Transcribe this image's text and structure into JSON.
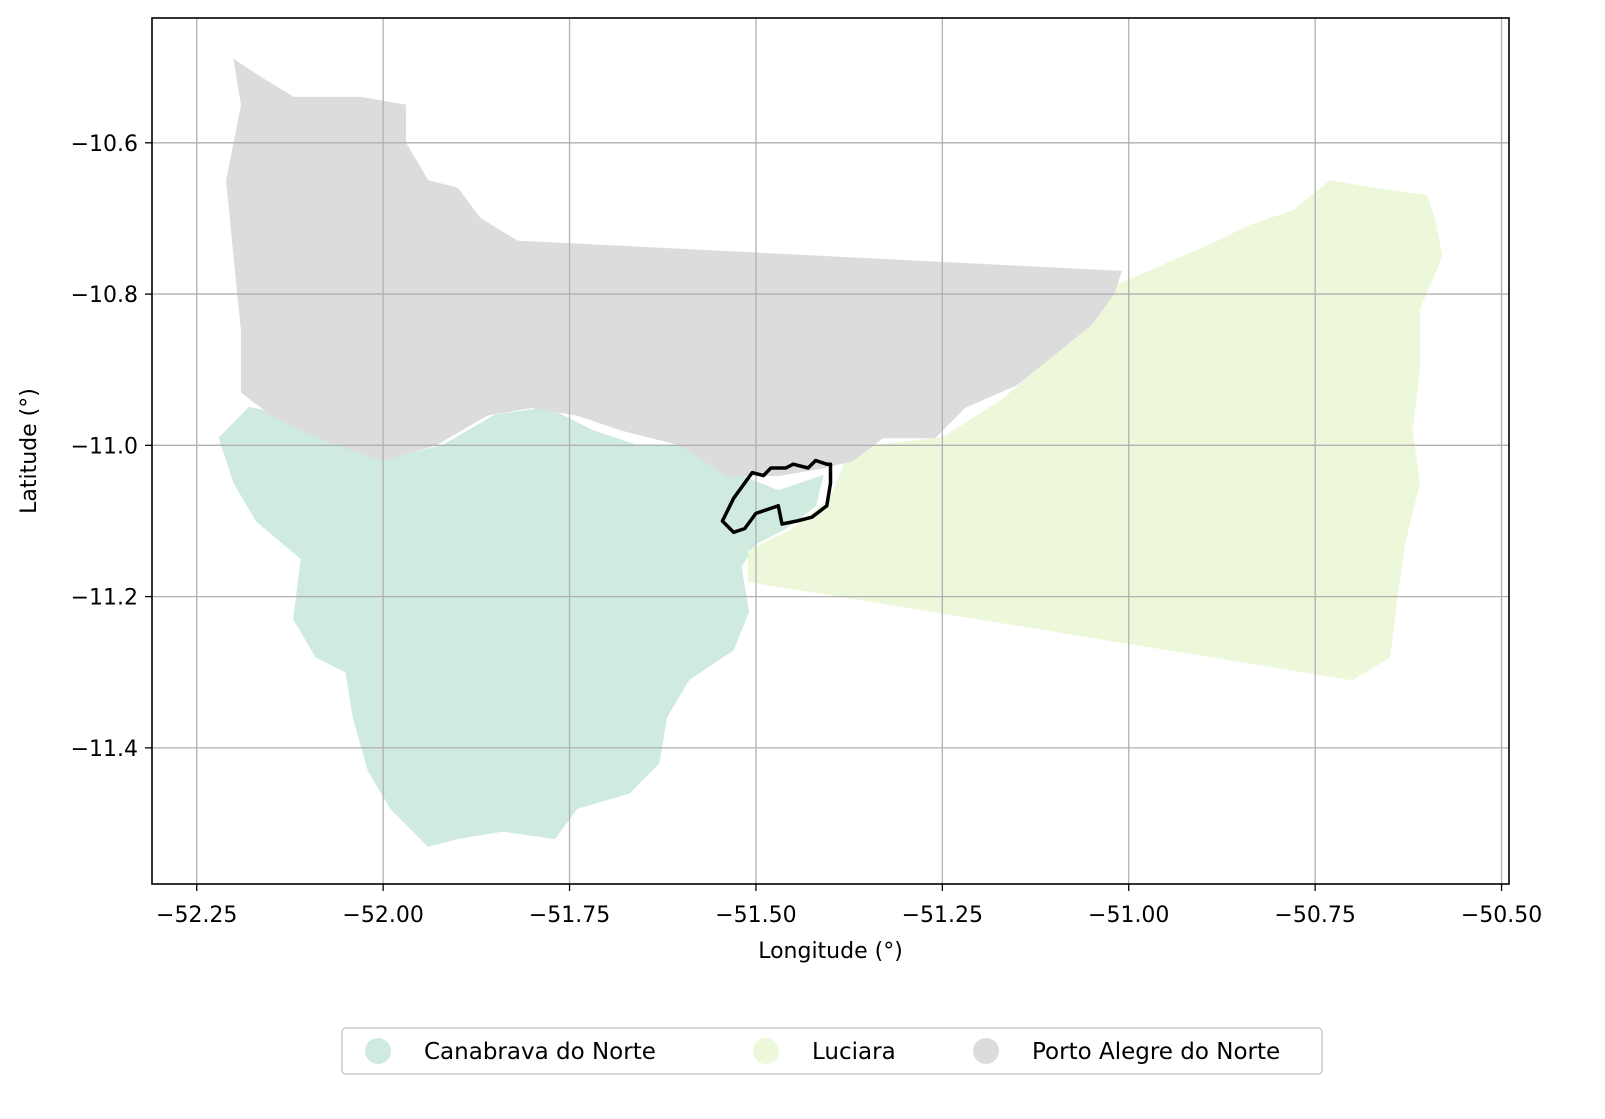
{
  "chart_data": {
    "type": "map",
    "xlabel": "Longitude (°)",
    "ylabel": "Latitude (°)",
    "xlim": [
      -52.31,
      -50.49
    ],
    "ylim": [
      -11.58,
      -10.435
    ],
    "xticks": [
      -52.25,
      -52.0,
      -51.75,
      -51.5,
      -51.25,
      -51.0,
      -50.75,
      -50.5
    ],
    "xtick_labels": [
      "−52.25",
      "−52.00",
      "−51.75",
      "−51.50",
      "−51.25",
      "−51.00",
      "−50.75",
      "−50.50"
    ],
    "yticks": [
      -10.6,
      -10.8,
      -11.0,
      -11.2,
      -11.4
    ],
    "ytick_labels": [
      "−10.6",
      "−10.8",
      "−11.0",
      "−11.2",
      "−11.4"
    ],
    "grid": true,
    "legend_position": "bottom-center (outside plot)",
    "regions": [
      {
        "name": "Canabrava do Norte",
        "color": "#cfebdf",
        "polygon": [
          [
            -52.18,
            -10.95
          ],
          [
            -52.13,
            -10.96
          ],
          [
            -52.1,
            -10.98
          ],
          [
            -52.05,
            -11.0
          ],
          [
            -52.0,
            -11.02
          ],
          [
            -51.92,
            -11.0
          ],
          [
            -51.85,
            -10.96
          ],
          [
            -51.78,
            -10.95
          ],
          [
            -51.72,
            -10.98
          ],
          [
            -51.66,
            -11.0
          ],
          [
            -51.6,
            -11.0
          ],
          [
            -51.52,
            -11.04
          ],
          [
            -51.47,
            -11.06
          ],
          [
            -51.41,
            -11.04
          ],
          [
            -51.42,
            -11.08
          ],
          [
            -51.46,
            -11.11
          ],
          [
            -51.5,
            -11.13
          ],
          [
            -51.52,
            -11.16
          ],
          [
            -51.51,
            -11.22
          ],
          [
            -51.53,
            -11.27
          ],
          [
            -51.59,
            -11.31
          ],
          [
            -51.62,
            -11.36
          ],
          [
            -51.63,
            -11.42
          ],
          [
            -51.67,
            -11.46
          ],
          [
            -51.74,
            -11.48
          ],
          [
            -51.77,
            -11.52
          ],
          [
            -51.84,
            -11.51
          ],
          [
            -51.9,
            -11.52
          ],
          [
            -51.94,
            -11.53
          ],
          [
            -51.99,
            -11.48
          ],
          [
            -52.02,
            -11.43
          ],
          [
            -52.04,
            -11.36
          ],
          [
            -52.05,
            -11.3
          ],
          [
            -52.09,
            -11.28
          ],
          [
            -52.12,
            -11.23
          ],
          [
            -52.11,
            -11.15
          ],
          [
            -52.17,
            -11.1
          ],
          [
            -52.2,
            -11.05
          ],
          [
            -52.22,
            -10.99
          ]
        ]
      },
      {
        "name": "Luciara",
        "color": "#edf8da",
        "polygon": [
          [
            -51.02,
            -10.79
          ],
          [
            -50.95,
            -10.76
          ],
          [
            -50.88,
            -10.73
          ],
          [
            -50.84,
            -10.71
          ],
          [
            -50.78,
            -10.69
          ],
          [
            -50.73,
            -10.65
          ],
          [
            -50.67,
            -10.66
          ],
          [
            -50.6,
            -10.67
          ],
          [
            -50.59,
            -10.7
          ],
          [
            -50.58,
            -10.75
          ],
          [
            -50.61,
            -10.82
          ],
          [
            -50.61,
            -10.9
          ],
          [
            -50.62,
            -10.98
          ],
          [
            -50.61,
            -11.05
          ],
          [
            -50.63,
            -11.13
          ],
          [
            -50.64,
            -11.2
          ],
          [
            -50.65,
            -11.28
          ],
          [
            -50.7,
            -11.31
          ],
          [
            -51.51,
            -11.18
          ],
          [
            -51.51,
            -11.14
          ],
          [
            -51.45,
            -11.11
          ],
          [
            -51.4,
            -11.07
          ],
          [
            -51.38,
            -11.02
          ],
          [
            -51.34,
            -11.0
          ],
          [
            -51.25,
            -10.99
          ],
          [
            -51.17,
            -10.94
          ],
          [
            -51.1,
            -10.88
          ],
          [
            -51.05,
            -10.82
          ]
        ]
      },
      {
        "name": "Porto Alegre do Norte",
        "color": "#dcdcdc",
        "polygon": [
          [
            -52.2,
            -10.49
          ],
          [
            -52.17,
            -10.51
          ],
          [
            -52.12,
            -10.54
          ],
          [
            -52.03,
            -10.54
          ],
          [
            -51.97,
            -10.55
          ],
          [
            -51.97,
            -10.6
          ],
          [
            -51.94,
            -10.65
          ],
          [
            -51.9,
            -10.66
          ],
          [
            -51.87,
            -10.7
          ],
          [
            -51.82,
            -10.73
          ],
          [
            -51.01,
            -10.77
          ],
          [
            -51.02,
            -10.8
          ],
          [
            -51.05,
            -10.84
          ],
          [
            -51.1,
            -10.88
          ],
          [
            -51.15,
            -10.92
          ],
          [
            -51.22,
            -10.95
          ],
          [
            -51.26,
            -10.99
          ],
          [
            -51.33,
            -10.99
          ],
          [
            -51.37,
            -11.02
          ],
          [
            -51.41,
            -11.03
          ],
          [
            -51.47,
            -11.04
          ],
          [
            -51.54,
            -11.04
          ],
          [
            -51.6,
            -11.0
          ],
          [
            -51.68,
            -10.98
          ],
          [
            -51.74,
            -10.96
          ],
          [
            -51.8,
            -10.95
          ],
          [
            -51.86,
            -10.96
          ],
          [
            -51.93,
            -11.0
          ],
          [
            -52.0,
            -11.02
          ],
          [
            -52.06,
            -11.0
          ],
          [
            -52.11,
            -10.98
          ],
          [
            -52.15,
            -10.96
          ],
          [
            -52.19,
            -10.93
          ],
          [
            -52.19,
            -10.85
          ],
          [
            -52.2,
            -10.75
          ],
          [
            -52.21,
            -10.65
          ],
          [
            -52.19,
            -10.55
          ]
        ]
      }
    ],
    "highlight_outline": {
      "color": "#000000",
      "polygon": [
        [
          -51.505,
          -11.036
        ],
        [
          -51.49,
          -11.04
        ],
        [
          -51.48,
          -11.03
        ],
        [
          -51.46,
          -11.03
        ],
        [
          -51.45,
          -11.025
        ],
        [
          -51.43,
          -11.03
        ],
        [
          -51.42,
          -11.02
        ],
        [
          -51.405,
          -11.025
        ],
        [
          -51.4,
          -11.025
        ],
        [
          -51.4,
          -11.05
        ],
        [
          -51.405,
          -11.08
        ],
        [
          -51.425,
          -11.095
        ],
        [
          -51.445,
          -11.1
        ],
        [
          -51.465,
          -11.104
        ],
        [
          -51.47,
          -11.08
        ],
        [
          -51.5,
          -11.09
        ],
        [
          -51.515,
          -11.11
        ],
        [
          -51.53,
          -11.115
        ],
        [
          -51.545,
          -11.1
        ],
        [
          -51.53,
          -11.07
        ]
      ]
    },
    "legend": [
      {
        "label": "Canabrava do Norte",
        "color": "#cfebdf"
      },
      {
        "label": "Luciara",
        "color": "#edf8da"
      },
      {
        "label": "Porto Alegre do Norte",
        "color": "#dcdcdc"
      }
    ]
  }
}
